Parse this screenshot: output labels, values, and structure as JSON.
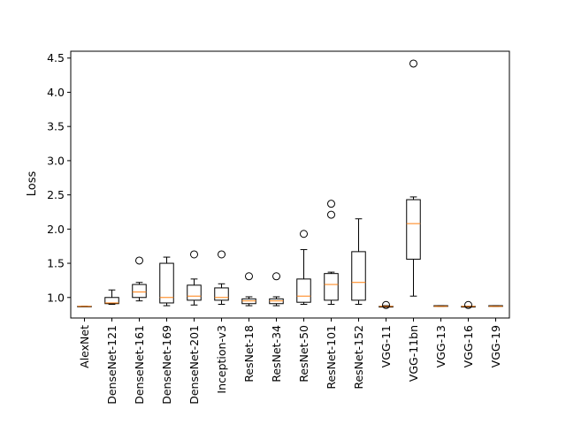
{
  "chart_data": {
    "type": "box",
    "title": "",
    "xlabel": "",
    "ylabel": "Loss",
    "ylim": [
      0.7,
      4.6
    ],
    "yticks": [
      1.0,
      1.5,
      2.0,
      2.5,
      3.0,
      3.5,
      4.0,
      4.5
    ],
    "ytick_labels": [
      "1.0",
      "1.5",
      "2.0",
      "2.5",
      "3.0",
      "3.5",
      "4.0",
      "4.5"
    ],
    "categories": [
      "AlexNet",
      "DenseNet-121",
      "DenseNet-161",
      "DenseNet-169",
      "DenseNet-201",
      "Inception-v3",
      "ResNet-18",
      "ResNet-34",
      "ResNet-50",
      "ResNet-101",
      "ResNet-152",
      "VGG-11",
      "VGG-11bn",
      "VGG-13",
      "VGG-16",
      "VGG-19"
    ],
    "boxes": [
      {
        "whisker_low": 0.87,
        "q1": 0.87,
        "median": 0.87,
        "q3": 0.87,
        "whisker_high": 0.87,
        "outliers": []
      },
      {
        "whisker_low": 0.9,
        "q1": 0.91,
        "median": 0.92,
        "q3": 1.0,
        "whisker_high": 1.11,
        "outliers": []
      },
      {
        "whisker_low": 0.95,
        "q1": 1.0,
        "median": 1.08,
        "q3": 1.19,
        "whisker_high": 1.22,
        "outliers": [
          1.54
        ]
      },
      {
        "whisker_low": 0.88,
        "q1": 0.92,
        "median": 1.0,
        "q3": 1.5,
        "whisker_high": 1.59,
        "outliers": []
      },
      {
        "whisker_low": 0.89,
        "q1": 0.96,
        "median": 1.02,
        "q3": 1.18,
        "whisker_high": 1.27,
        "outliers": [
          1.63
        ]
      },
      {
        "whisker_low": 0.9,
        "q1": 0.96,
        "median": 1.0,
        "q3": 1.14,
        "whisker_high": 1.2,
        "outliers": [
          1.63
        ]
      },
      {
        "whisker_low": 0.88,
        "q1": 0.91,
        "median": 0.95,
        "q3": 0.98,
        "whisker_high": 1.01,
        "outliers": [
          1.31
        ]
      },
      {
        "whisker_low": 0.88,
        "q1": 0.91,
        "median": 0.95,
        "q3": 0.98,
        "whisker_high": 1.01,
        "outliers": [
          1.31
        ]
      },
      {
        "whisker_low": 0.9,
        "q1": 0.93,
        "median": 1.02,
        "q3": 1.27,
        "whisker_high": 1.7,
        "outliers": [
          1.93
        ]
      },
      {
        "whisker_low": 0.9,
        "q1": 0.96,
        "median": 1.19,
        "q3": 1.35,
        "whisker_high": 1.37,
        "outliers": [
          2.21,
          2.37
        ]
      },
      {
        "whisker_low": 0.9,
        "q1": 0.96,
        "median": 1.22,
        "q3": 1.67,
        "whisker_high": 2.15,
        "outliers": []
      },
      {
        "whisker_low": 0.86,
        "q1": 0.86,
        "median": 0.87,
        "q3": 0.87,
        "whisker_high": 0.88,
        "outliers": [
          0.89
        ]
      },
      {
        "whisker_low": 1.02,
        "q1": 1.56,
        "median": 2.08,
        "q3": 2.43,
        "whisker_high": 2.47,
        "outliers": [
          4.42
        ]
      },
      {
        "whisker_low": 0.87,
        "q1": 0.87,
        "median": 0.87,
        "q3": 0.88,
        "whisker_high": 0.88,
        "outliers": []
      },
      {
        "whisker_low": 0.86,
        "q1": 0.86,
        "median": 0.87,
        "q3": 0.87,
        "whisker_high": 0.87,
        "outliers": [
          0.89
        ]
      },
      {
        "whisker_low": 0.87,
        "q1": 0.87,
        "median": 0.87,
        "q3": 0.88,
        "whisker_high": 0.88,
        "outliers": []
      }
    ],
    "grid": false,
    "colors": {
      "box": "#000000",
      "median": "#ff7f0e",
      "outlier": "#000000",
      "axes": "#000000"
    }
  }
}
